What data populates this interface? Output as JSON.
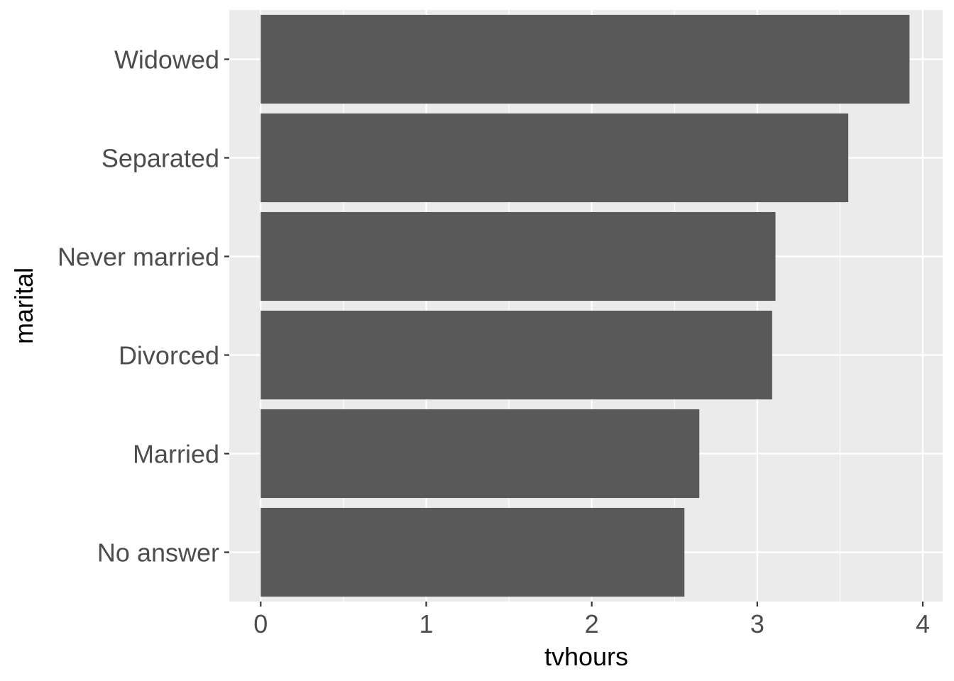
{
  "chart_data": {
    "type": "bar",
    "orientation": "horizontal",
    "categories": [
      "No answer",
      "Married",
      "Divorced",
      "Never married",
      "Separated",
      "Widowed"
    ],
    "values": [
      2.56,
      2.65,
      3.09,
      3.11,
      3.55,
      3.92
    ],
    "xlabel": "tvhours",
    "ylabel": "marital",
    "xlim": [
      -0.19,
      4.12
    ],
    "xticks": [
      0,
      1,
      2,
      3,
      4
    ],
    "grid": true,
    "legend": "none",
    "colors": {
      "bar": "#595959",
      "panel": "#ebebeb",
      "grid": "#ffffff",
      "tick_label": "#4d4d4d",
      "tick_mark": "#333333"
    }
  }
}
